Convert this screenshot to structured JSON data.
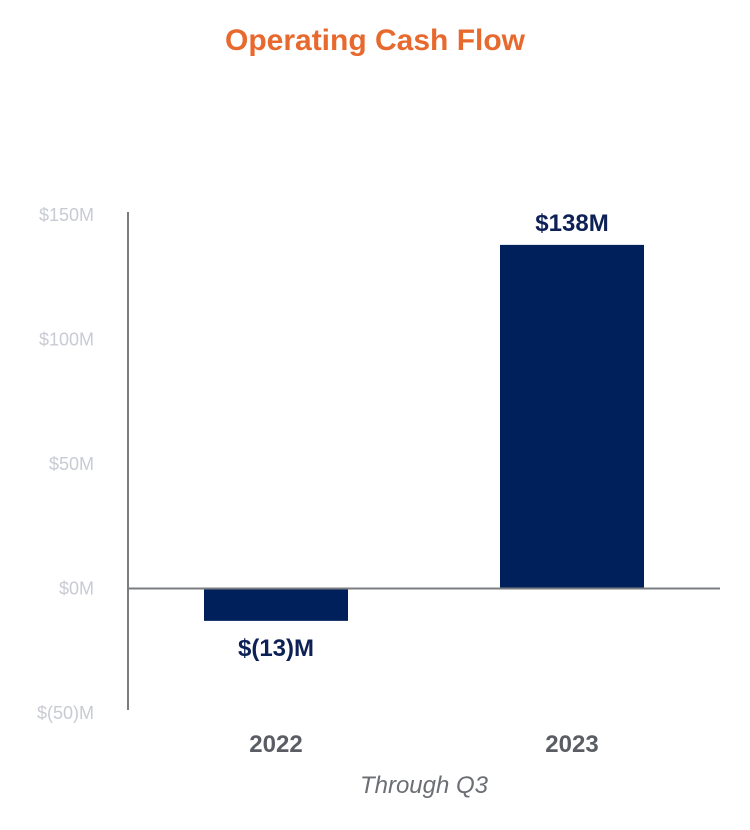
{
  "colors": {
    "title": "#e8692e",
    "bar": "#00205b",
    "axis": "#7a7c80",
    "tick_label": "#c9cbd3",
    "category_label": "#5a5d63",
    "data_label": "#0e2156",
    "subtitle": "#6b6e73"
  },
  "chart_data": {
    "type": "bar",
    "title": "Operating Cash Flow",
    "xlabel": "Through Q3",
    "ylabel": "",
    "categories": [
      "2022",
      "2023"
    ],
    "values": [
      -13,
      138
    ],
    "data_labels": [
      "$(13)M",
      "$138M"
    ],
    "ylim": [
      -50,
      150
    ],
    "yticks": [
      150,
      100,
      50,
      0,
      -50
    ],
    "ytick_labels": [
      "$150M",
      "$100M",
      "$50M",
      "$0M",
      "$(50)M"
    ],
    "grid": false,
    "legend": "none"
  }
}
